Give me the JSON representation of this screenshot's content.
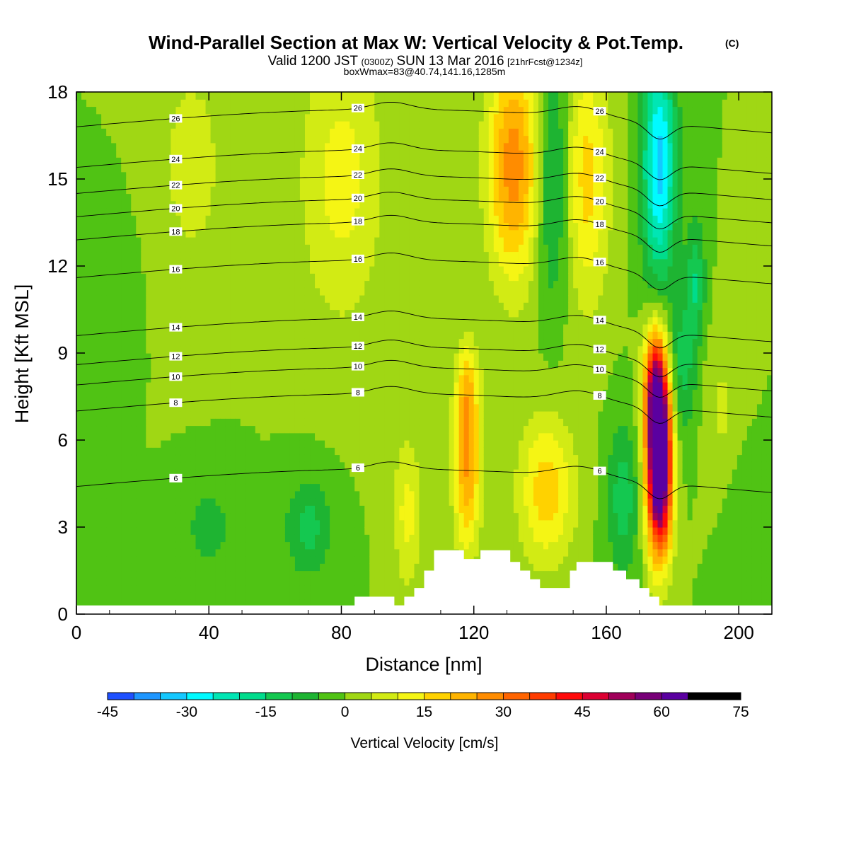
{
  "title": {
    "main": "Wind-Parallel Section at Max W: Vertical Velocity & Pot.Temp.",
    "mark": "(C)",
    "valid_a": "Valid 1200 JST",
    "valid_b": "(0300Z)",
    "valid_c": "SUN 13 Mar 2016",
    "valid_d": "[21hrFcst@1234z]",
    "box": "boxWmax=83@40.74,141.16,1285m"
  },
  "chart_data": {
    "type": "heatmap",
    "xlabel": "Distance [nm]",
    "ylabel": "Height [Kft MSL]",
    "xlim": [
      0,
      210
    ],
    "ylim": [
      0,
      18
    ],
    "x_ticks": [
      0,
      40,
      80,
      120,
      160,
      200
    ],
    "x_tick_labels": [
      "0",
      "40",
      "80",
      "120",
      "160",
      "200"
    ],
    "y_ticks": [
      0,
      3,
      6,
      9,
      12,
      15,
      18
    ],
    "y_tick_labels": [
      "0",
      "3",
      "6",
      "9",
      "12",
      "15",
      "18"
    ],
    "colorbar": {
      "label": "Vertical Velocity [cm/s]",
      "min": -45,
      "max": 75,
      "step": 5,
      "tick_values": [
        -45,
        -30,
        -15,
        0,
        15,
        30,
        45,
        60,
        75
      ],
      "tick_labels": [
        "-45",
        "-30",
        "-15",
        "0",
        "15",
        "30",
        "45",
        "60",
        "75"
      ],
      "colors": [
        "#0a0aff",
        "#1e50ff",
        "#1e96ff",
        "#14c8ff",
        "#00faff",
        "#00e6b4",
        "#00dc8c",
        "#14c850",
        "#1eb432",
        "#50c314",
        "#a0d714",
        "#d2eb14",
        "#f5f514",
        "#ffd200",
        "#ffb400",
        "#ff8c00",
        "#ff6400",
        "#ff3c00",
        "#ff0a0a",
        "#dc0032",
        "#a0005a",
        "#780078",
        "#5a00a0"
      ]
    },
    "w_features": [
      {
        "x": 176,
        "z": 5.0,
        "sx": 2.6,
        "sz": 2.0,
        "w": 78
      },
      {
        "x": 175,
        "z": 7.8,
        "sx": 2.5,
        "sz": 1.5,
        "w": 45
      },
      {
        "x": 118,
        "z": 5.0,
        "sx": 2.8,
        "sz": 2.0,
        "w": 25
      },
      {
        "x": 118,
        "z": 7.8,
        "sx": 2.5,
        "sz": 1.2,
        "w": 14
      },
      {
        "x": 142,
        "z": 4.3,
        "sx": 6.0,
        "sz": 1.8,
        "w": 18
      },
      {
        "x": 100,
        "z": 3.5,
        "sx": 3.0,
        "sz": 1.8,
        "w": 12
      },
      {
        "x": 165,
        "z": 4.0,
        "sx": 3.5,
        "sz": 1.8,
        "w": -13
      },
      {
        "x": 183,
        "z": 8.5,
        "sx": 3.0,
        "sz": 1.8,
        "w": -12
      },
      {
        "x": 132,
        "z": 15.5,
        "sx": 5.5,
        "sz": 2.8,
        "w": 28
      },
      {
        "x": 154,
        "z": 15.0,
        "sx": 5.0,
        "sz": 3.0,
        "w": 17
      },
      {
        "x": 144,
        "z": 15.0,
        "sx": 3.5,
        "sz": 3.0,
        "w": -15
      },
      {
        "x": 176,
        "z": 15.5,
        "sx": 3.5,
        "sz": 2.8,
        "w": -32
      },
      {
        "x": 187,
        "z": 11.5,
        "sx": 2.0,
        "sz": 1.5,
        "w": -14
      },
      {
        "x": 80,
        "z": 15.0,
        "sx": 9.0,
        "sz": 3.5,
        "w": 12
      },
      {
        "x": 35,
        "z": 15.5,
        "sx": 8.0,
        "sz": 3.0,
        "w": 7
      },
      {
        "x": 10,
        "z": 11.0,
        "sx": 5.0,
        "sz": 1.8,
        "w": -5
      },
      {
        "x": 70,
        "z": 3.0,
        "sx": 5.0,
        "sz": 1.2,
        "w": -12
      },
      {
        "x": 40,
        "z": 3.0,
        "sx": 6.0,
        "sz": 1.2,
        "w": -7
      },
      {
        "x": 200,
        "z": 3.0,
        "sx": 4.0,
        "sz": 2.0,
        "w": -4
      },
      {
        "x": 195,
        "z": 7.0,
        "sx": 4.0,
        "sz": 2.0,
        "w": 6
      }
    ],
    "theta_contours": [
      {
        "value": 6,
        "label": "6",
        "base": 4.4
      },
      {
        "value": 8,
        "label": "8",
        "base": 7.0
      },
      {
        "value": 10,
        "label": "10",
        "base": 7.9
      },
      {
        "value": 12,
        "label": "12",
        "base": 8.6
      },
      {
        "value": 14,
        "label": "14",
        "base": 9.6
      },
      {
        "value": 16,
        "label": "16",
        "base": 11.6
      },
      {
        "value": 18,
        "label": "18",
        "base": 12.9
      },
      {
        "value": 20,
        "label": "20",
        "base": 13.7
      },
      {
        "value": 22,
        "label": "22",
        "base": 14.5
      },
      {
        "value": 24,
        "label": "24",
        "base": 15.4
      },
      {
        "value": 26,
        "label": "26",
        "base": 16.8
      }
    ],
    "terrain": [
      [
        84,
        0.6
      ],
      [
        90,
        0.6
      ],
      [
        96,
        0.3
      ],
      [
        99,
        0.6
      ],
      [
        102,
        0.9
      ],
      [
        105,
        1.5
      ],
      [
        108,
        2.2
      ],
      [
        114,
        2.2
      ],
      [
        117,
        1.9
      ],
      [
        120,
        1.9
      ],
      [
        122,
        2.2
      ],
      [
        128,
        2.2
      ],
      [
        131,
        1.8
      ],
      [
        134,
        1.5
      ],
      [
        137,
        1.2
      ],
      [
        140,
        0.9
      ],
      [
        146,
        0.9
      ],
      [
        149,
        1.5
      ],
      [
        151,
        1.8
      ],
      [
        158,
        1.8
      ],
      [
        162,
        1.5
      ],
      [
        166,
        1.2
      ],
      [
        170,
        0.9
      ],
      [
        173,
        0.6
      ],
      [
        176,
        0.3
      ]
    ]
  }
}
